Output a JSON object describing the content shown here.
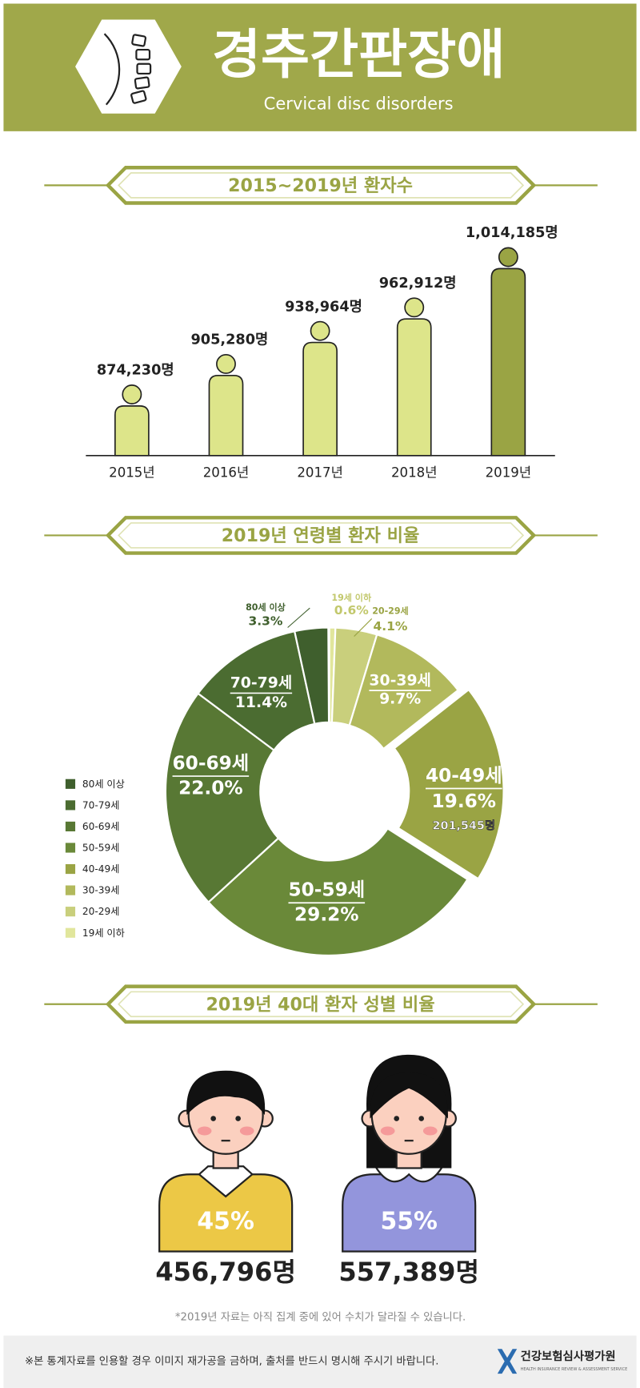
{
  "header": {
    "title": "경추간판장애",
    "subtitle": "Cervical disc disorders"
  },
  "chart_data": [
    {
      "type": "bar",
      "title": "2015~2019년 환자수",
      "categories": [
        "2015년",
        "2016년",
        "2017년",
        "2018년",
        "2019년"
      ],
      "values": [
        874230,
        905280,
        938964,
        962912,
        1014185
      ],
      "value_labels": [
        "874,230명",
        "905,280명",
        "938,964명",
        "962,912명",
        "1,014,185명"
      ],
      "colors": [
        "#dde58a",
        "#dde58a",
        "#dde58a",
        "#dde58a",
        "#9aa444"
      ]
    },
    {
      "type": "donut",
      "title": "2019년 연령별 환자 비율",
      "categories": [
        "80세 이상",
        "70-79세",
        "60-69세",
        "50-59세",
        "40-49세",
        "30-39세",
        "20-29세",
        "19세 이하"
      ],
      "values": [
        3.3,
        11.4,
        22.0,
        29.2,
        19.6,
        9.7,
        4.1,
        0.6
      ],
      "value_labels": [
        "3.3%",
        "11.4%",
        "22.0%",
        "29.2%",
        "19.6%",
        "9.7%",
        "4.1%",
        "0.6%"
      ],
      "colors": [
        "#3f5f2d",
        "#4b6c31",
        "#587834",
        "#6a8939",
        "#9aa444",
        "#b2b95c",
        "#c9cf7c",
        "#e1e69c"
      ],
      "exploded": [
        false,
        false,
        false,
        false,
        true,
        false,
        false,
        false
      ],
      "annotation": "201,545명",
      "legend": "left"
    },
    {
      "type": "people",
      "title": "2019년 40대 환자 성별 비율",
      "values": [
        45,
        55
      ],
      "value_labels": [
        "45%",
        "55%"
      ],
      "counts": [
        456796,
        557389
      ],
      "count_labels": [
        "456,796명",
        "557,389명"
      ],
      "colors": [
        "#ecc846",
        "#9395dc"
      ],
      "note": "*2019년 자료는 아직 집계 중에 있어 수치가 달라질 수 있습니다."
    }
  ],
  "footer": {
    "notice": "※본 통계자료를 인용할 경우 이미지 재가공을 금하며, 출처를 반드시 명시해 주시기 바랍니다.",
    "org": "건강보험심사평가원",
    "org_en": "HEALTH INSURANCE REVIEW & ASSESSMENT SERVICE"
  }
}
